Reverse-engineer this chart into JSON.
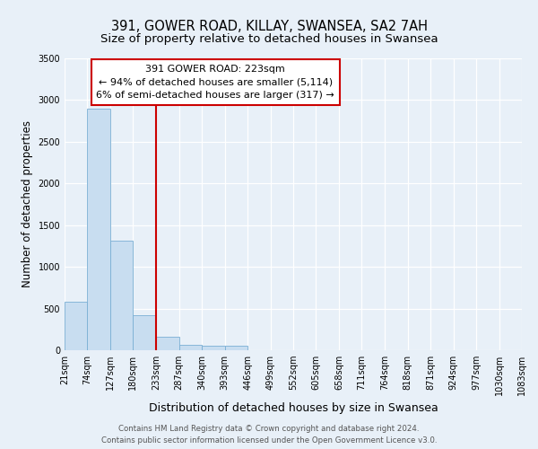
{
  "title": "391, GOWER ROAD, KILLAY, SWANSEA, SA2 7AH",
  "subtitle": "Size of property relative to detached houses in Swansea",
  "xlabel": "Distribution of detached houses by size in Swansea",
  "ylabel": "Number of detached properties",
  "bar_values": [
    580,
    2900,
    1310,
    420,
    160,
    70,
    50,
    50,
    0,
    0,
    0,
    0,
    0,
    0,
    0,
    0,
    0,
    0,
    0,
    0
  ],
  "bin_edges": [
    21,
    74,
    127,
    180,
    233,
    287,
    340,
    393,
    446,
    499,
    552,
    605,
    658,
    711,
    764,
    818,
    871,
    924,
    977,
    1030,
    1083
  ],
  "bin_labels": [
    "21sqm",
    "74sqm",
    "127sqm",
    "180sqm",
    "233sqm",
    "287sqm",
    "340sqm",
    "393sqm",
    "446sqm",
    "499sqm",
    "552sqm",
    "605sqm",
    "658sqm",
    "711sqm",
    "764sqm",
    "818sqm",
    "871sqm",
    "924sqm",
    "977sqm",
    "1030sqm",
    "1083sqm"
  ],
  "bar_color": "#c8ddf0",
  "bar_edge_color": "#7aafd4",
  "vline_color": "#cc0000",
  "annotation_line1": "391 GOWER ROAD: 223sqm",
  "annotation_line2": "← 94% of detached houses are smaller (5,114)",
  "annotation_line3": "6% of semi-detached houses are larger (317) →",
  "annotation_box_color": "#ffffff",
  "annotation_box_edge_color": "#cc0000",
  "ylim": [
    0,
    3500
  ],
  "yticks": [
    0,
    500,
    1000,
    1500,
    2000,
    2500,
    3000,
    3500
  ],
  "footer_line1": "Contains HM Land Registry data © Crown copyright and database right 2024.",
  "footer_line2": "Contains public sector information licensed under the Open Government Licence v3.0.",
  "background_color": "#e8f0f8",
  "plot_bg_color": "#e8f0f8",
  "grid_color": "#ffffff",
  "title_fontsize": 10.5,
  "subtitle_fontsize": 9.5,
  "tick_fontsize": 7,
  "ylabel_fontsize": 8.5,
  "xlabel_fontsize": 9,
  "annotation_fontsize": 8,
  "footer_fontsize": 6.2
}
